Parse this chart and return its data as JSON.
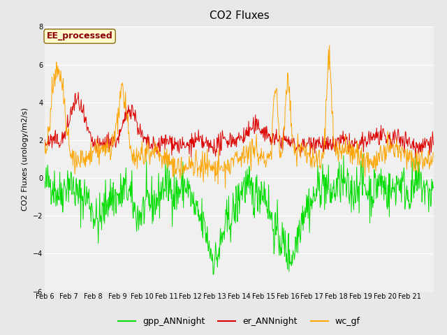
{
  "title": "CO2 Fluxes",
  "ylabel": "CO2 Fluxes (urology/m2/s)",
  "ylim": [
    -6,
    8
  ],
  "yticks": [
    -6,
    -4,
    -2,
    0,
    2,
    4,
    6,
    8
  ],
  "annotation_text": "EE_processed",
  "annotation_color": "#8B0000",
  "annotation_bg": "#FFFACD",
  "annotation_border": "#8B6914",
  "colors": {
    "gpp_ANNnight": "#00DD00",
    "er_ANNnight": "#DD0000",
    "wc_gf": "#FFA500"
  },
  "date_labels": [
    "Feb 6",
    "Feb 7",
    "Feb 8",
    "Feb 9",
    "Feb 10",
    "Feb 11",
    "Feb 12",
    "Feb 13",
    "Feb 14",
    "Feb 15",
    "Feb 16",
    "Feb 17",
    "Feb 18",
    "Feb 19",
    "Feb 20",
    "Feb 21"
  ],
  "n_points": 800,
  "background_color": "#E8E8E8",
  "plot_bg": "#F0F0F0",
  "seed": 42
}
